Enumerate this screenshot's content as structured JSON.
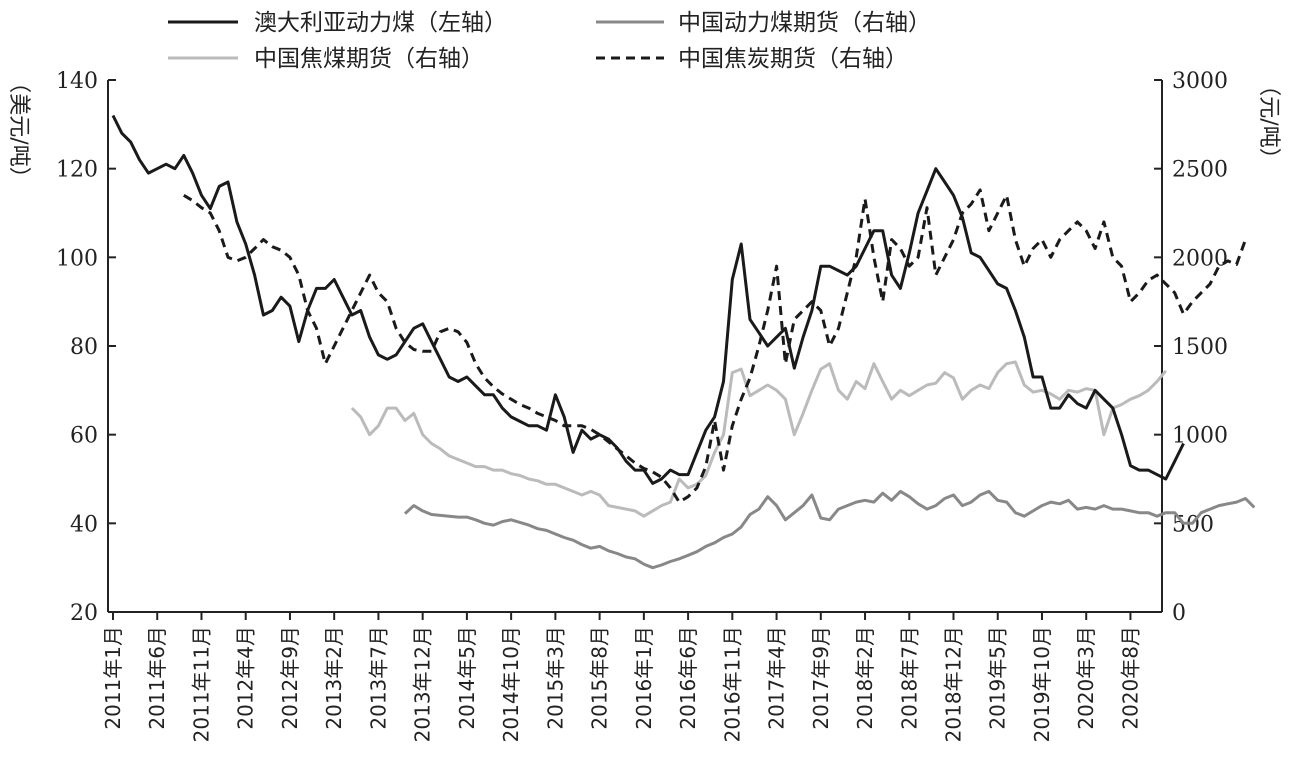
{
  "chart_data": {
    "type": "line",
    "x_ticks": [
      "2011年1月",
      "2011年6月",
      "2011年11月",
      "2012年4月",
      "2012年9月",
      "2013年2月",
      "2013年7月",
      "2013年12月",
      "2014年5月",
      "2014年10月",
      "2015年3月",
      "2015年8月",
      "2016年1月",
      "2016年6月",
      "2016年11月",
      "2017年4月",
      "2017年9月",
      "2018年2月",
      "2018年7月",
      "2018年12月",
      "2019年5月",
      "2019年10月",
      "2020年3月",
      "2020年8月"
    ],
    "left_axis": {
      "label": "（美元/吨）",
      "ticks": [
        "140",
        "120",
        "100",
        "80",
        "60",
        "40",
        "20"
      ],
      "ylim": [
        20,
        140
      ]
    },
    "right_axis": {
      "label": "（元/吨）",
      "ticks": [
        "3000",
        "2500",
        "2000",
        "1500",
        "1000",
        "500",
        "0"
      ],
      "ylim": [
        0,
        3000
      ]
    },
    "legend": {
      "position": "top",
      "entries": [
        "澳大利亚动力煤（左轴）",
        "中国动力煤期货（右轴）",
        "中国焦煤期货（右轴）",
        "中国焦炭期货（右轴）"
      ]
    },
    "series": [
      {
        "name": "澳大利亚动力煤（左轴）",
        "axis": "left",
        "color": "#1a1a1a",
        "dash": "solid",
        "start_index": 0,
        "values": [
          132,
          128,
          126,
          122,
          119,
          120,
          121,
          120,
          123,
          119,
          114,
          111,
          116,
          117,
          108,
          103,
          96,
          87,
          88,
          91,
          89,
          81,
          88,
          93,
          93,
          95,
          91,
          87,
          88,
          82,
          78,
          77,
          78,
          81,
          84,
          85,
          81,
          77,
          73,
          72,
          73,
          71,
          69,
          69,
          66,
          64,
          63,
          62,
          62,
          61,
          69,
          64,
          56,
          61,
          59,
          60,
          59,
          57,
          54,
          52,
          52,
          49,
          50,
          52,
          51,
          51,
          56,
          61,
          64,
          72,
          95,
          103,
          86,
          83,
          80,
          82,
          84,
          75,
          82,
          88,
          98,
          98,
          97,
          96,
          98,
          102,
          106,
          106,
          96,
          93,
          101,
          110,
          115,
          120,
          117,
          114,
          109,
          101,
          100,
          97,
          94,
          93,
          88,
          82,
          73,
          73,
          66,
          66,
          69,
          67,
          66,
          70,
          68,
          66,
          60,
          53,
          52,
          52,
          51,
          50,
          54,
          58
        ]
      },
      {
        "name": "中国动力煤期货（右轴）",
        "axis": "right",
        "color": "#888888",
        "dash": "solid",
        "start_index": 33,
        "values": [
          555,
          600,
          570,
          550,
          545,
          540,
          535,
          535,
          520,
          500,
          490,
          510,
          520,
          505,
          490,
          470,
          460,
          440,
          420,
          405,
          380,
          360,
          370,
          345,
          330,
          310,
          300,
          270,
          250,
          265,
          285,
          300,
          320,
          340,
          370,
          390,
          420,
          440,
          480,
          550,
          580,
          650,
          600,
          520,
          560,
          600,
          660,
          530,
          520,
          580,
          600,
          620,
          630,
          620,
          670,
          630,
          680,
          650,
          610,
          580,
          600,
          640,
          660,
          600,
          620,
          660,
          680,
          630,
          620,
          560,
          540,
          570,
          600,
          620,
          610,
          630,
          580,
          590,
          580,
          600,
          580,
          580,
          570,
          560,
          560,
          540,
          560,
          560,
          500,
          500,
          560,
          580,
          600,
          610,
          620,
          640,
          590
        ]
      },
      {
        "name": "中国焦煤期货（右轴）",
        "axis": "right",
        "color": "#bbbbbb",
        "dash": "solid",
        "start_index": 27,
        "values": [
          1150,
          1100,
          1000,
          1050,
          1150,
          1150,
          1080,
          1120,
          1000,
          950,
          920,
          880,
          860,
          840,
          820,
          820,
          800,
          800,
          780,
          770,
          750,
          740,
          720,
          720,
          700,
          680,
          660,
          680,
          660,
          600,
          590,
          580,
          570,
          540,
          570,
          600,
          620,
          750,
          700,
          720,
          770,
          900,
          1000,
          1350,
          1370,
          1220,
          1250,
          1280,
          1250,
          1200,
          1000,
          1120,
          1250,
          1370,
          1400,
          1250,
          1200,
          1300,
          1260,
          1400,
          1300,
          1200,
          1250,
          1220,
          1250,
          1280,
          1290,
          1350,
          1320,
          1200,
          1250,
          1280,
          1260,
          1350,
          1400,
          1410,
          1280,
          1240,
          1250,
          1230,
          1200,
          1250,
          1240,
          1260,
          1250,
          1000,
          1150,
          1170,
          1200,
          1220,
          1250,
          1300,
          1360
        ]
      },
      {
        "name": "中国焦炭期货（右轴）",
        "axis": "right",
        "color": "#1a1a1a",
        "dash": "dashed",
        "start_index": 8,
        "values": [
          2350,
          2320,
          2280,
          2250,
          2150,
          2000,
          1980,
          2000,
          2050,
          2100,
          2060,
          2040,
          2000,
          1900,
          1700,
          1600,
          1400,
          1500,
          1600,
          1700,
          1800,
          1900,
          1800,
          1750,
          1600,
          1520,
          1480,
          1470,
          1470,
          1580,
          1600,
          1580,
          1520,
          1400,
          1320,
          1270,
          1230,
          1200,
          1170,
          1150,
          1120,
          1100,
          1080,
          1050,
          1050,
          1050,
          1030,
          1000,
          960,
          920,
          880,
          840,
          810,
          790,
          760,
          700,
          620,
          650,
          700,
          820,
          1080,
          800,
          1050,
          1200,
          1320,
          1500,
          1700,
          1950,
          1400,
          1650,
          1700,
          1750,
          1700,
          1500,
          1600,
          1800,
          2000,
          2330,
          2000,
          1750,
          2100,
          2050,
          1950,
          2000,
          2280,
          1900,
          2000,
          2100,
          2250,
          2300,
          2380,
          2150,
          2250,
          2350,
          2100,
          1950,
          2050,
          2100,
          2000,
          2100,
          2150,
          2200,
          2150,
          2050,
          2200,
          2000,
          1950,
          1750,
          1800,
          1870,
          1900,
          1850,
          1800,
          1680,
          1750,
          1800,
          1850,
          1950,
          1980,
          1960,
          2100
        ]
      }
    ]
  }
}
